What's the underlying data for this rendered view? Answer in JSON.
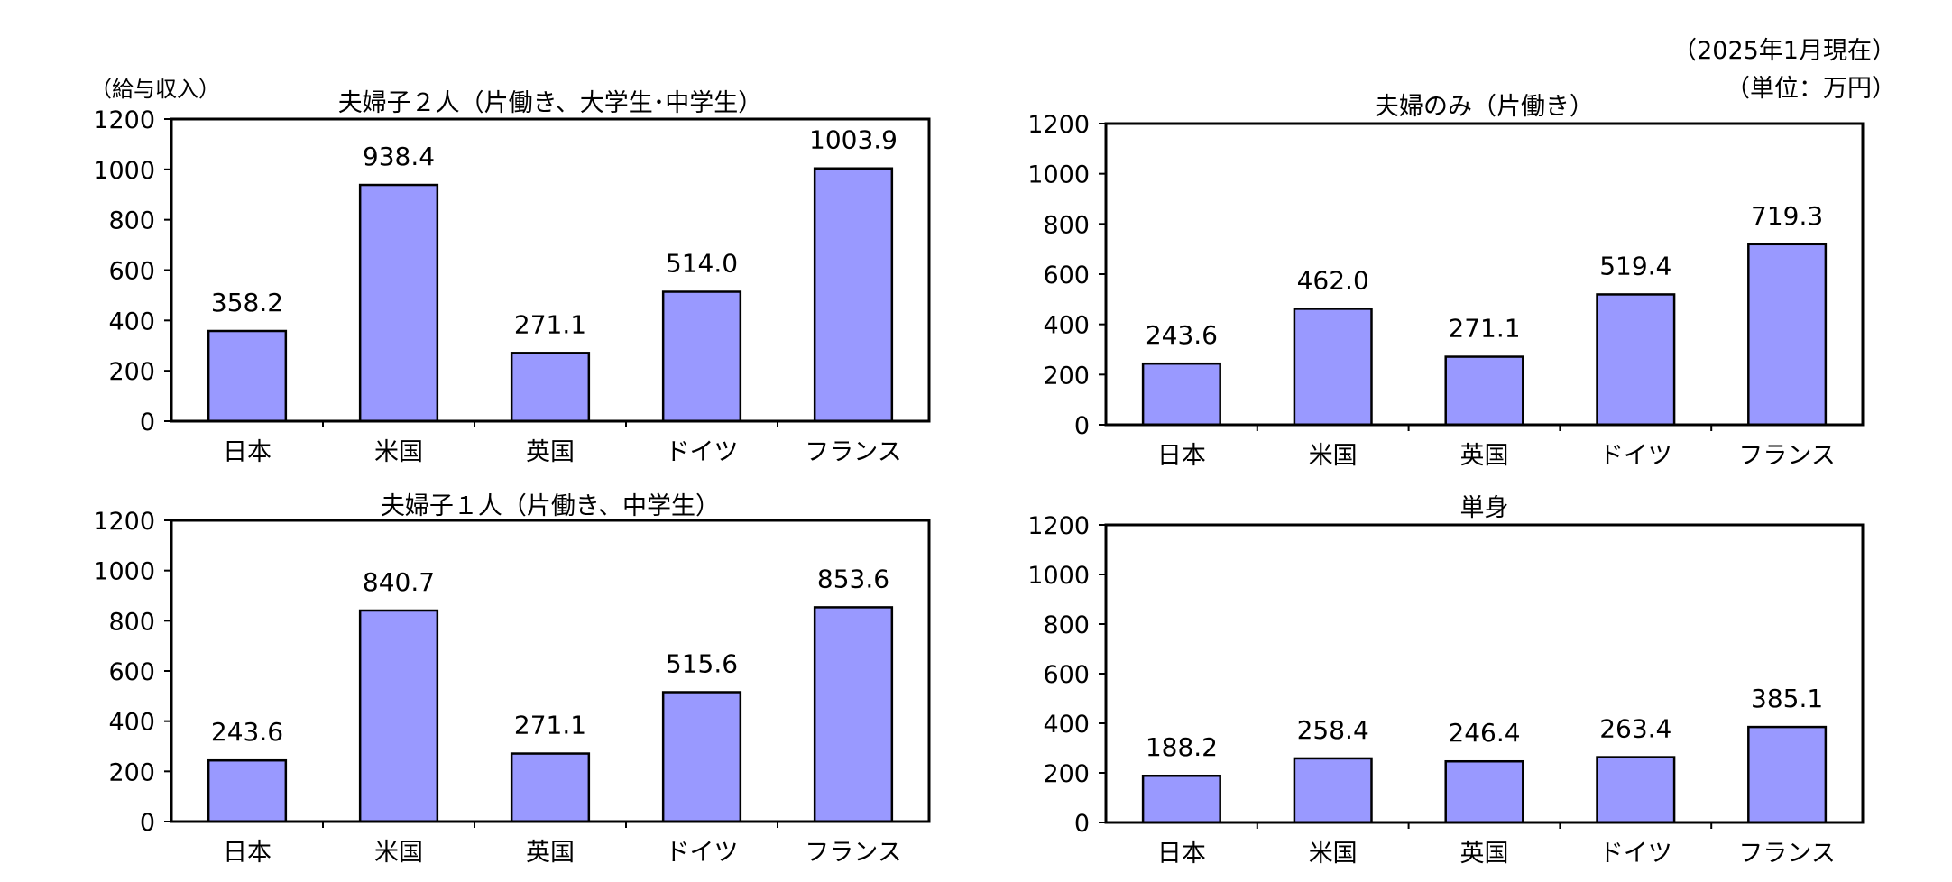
{
  "notes": {
    "date": "（2025年1月現在）",
    "unit": "（単位：万円）",
    "y_axis_caption": "（給与収入）"
  },
  "chart_data": [
    {
      "type": "bar",
      "title": "夫婦子２人（片働き、大学生･中学生）",
      "categories": [
        "日本",
        "米国",
        "英国",
        "ドイツ",
        "フランス"
      ],
      "values": [
        358.2,
        938.4,
        271.1,
        514.0,
        1003.9
      ],
      "value_labels": [
        "358.2",
        "938.4",
        "271.1",
        "514.0",
        "1003.9"
      ],
      "yticks": [
        "0",
        "200",
        "400",
        "600",
        "800",
        "1000",
        "1200"
      ],
      "ylim": [
        0,
        1200
      ],
      "grid": false,
      "legend": "none",
      "bar_color": "#9999FF"
    },
    {
      "type": "bar",
      "title": "夫婦のみ（片働き）",
      "categories": [
        "日本",
        "米国",
        "英国",
        "ドイツ",
        "フランス"
      ],
      "values": [
        243.6,
        462.0,
        271.1,
        519.4,
        719.3
      ],
      "value_labels": [
        "243.6",
        "462.0",
        "271.1",
        "519.4",
        "719.3"
      ],
      "yticks": [
        "0",
        "200",
        "400",
        "600",
        "800",
        "1000",
        "1200"
      ],
      "ylim": [
        0,
        1200
      ],
      "grid": false,
      "legend": "none",
      "bar_color": "#9999FF"
    },
    {
      "type": "bar",
      "title": "夫婦子１人（片働き、中学生）",
      "categories": [
        "日本",
        "米国",
        "英国",
        "ドイツ",
        "フランス"
      ],
      "values": [
        243.6,
        840.7,
        271.1,
        515.6,
        853.6
      ],
      "value_labels": [
        "243.6",
        "840.7",
        "271.1",
        "515.6",
        "853.6"
      ],
      "yticks": [
        "0",
        "200",
        "400",
        "600",
        "800",
        "1000",
        "1200"
      ],
      "ylim": [
        0,
        1200
      ],
      "grid": false,
      "legend": "none",
      "bar_color": "#9999FF"
    },
    {
      "type": "bar",
      "title": "単身",
      "categories": [
        "日本",
        "米国",
        "英国",
        "ドイツ",
        "フランス"
      ],
      "values": [
        188.2,
        258.4,
        246.4,
        263.4,
        385.1
      ],
      "value_labels": [
        "188.2",
        "258.4",
        "246.4",
        "263.4",
        "385.1"
      ],
      "yticks": [
        "0",
        "200",
        "400",
        "600",
        "800",
        "1000",
        "1200"
      ],
      "ylim": [
        0,
        1200
      ],
      "grid": false,
      "legend": "none",
      "bar_color": "#9999FF"
    }
  ]
}
